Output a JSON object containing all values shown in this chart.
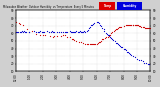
{
  "background_color": "#d0d0d0",
  "plot_bg_color": "#ffffff",
  "grid_color": "#bbbbbb",
  "temp_color": "#cc0000",
  "humidity_color": "#0000cc",
  "legend_temp_color": "#dd0000",
  "legend_humidity_color": "#0000dd",
  "legend_temp_label": "Temp",
  "legend_humidity_label": "Humidity",
  "ylim": [
    10,
    90
  ],
  "xlim": [
    0,
    600
  ],
  "marker_size": 0.8,
  "figsize": [
    1.6,
    0.87
  ],
  "dpi": 100,
  "temp_x": [
    0,
    15,
    20,
    30,
    50,
    70,
    90,
    110,
    120,
    130,
    150,
    165,
    170,
    185,
    200,
    210,
    220,
    230,
    240,
    250,
    255,
    260,
    270,
    280,
    290,
    300,
    310,
    315,
    320,
    330,
    335,
    340,
    345,
    350,
    355,
    360,
    365,
    370,
    375,
    380,
    385,
    390,
    395,
    400,
    410,
    415,
    420,
    425,
    430,
    435,
    440,
    445,
    450,
    455,
    460,
    465,
    470,
    480,
    490,
    495,
    500,
    505,
    510,
    515,
    520,
    525,
    530,
    535,
    540,
    545,
    550,
    555,
    560,
    565,
    570,
    575,
    580,
    585,
    590,
    595,
    600
  ],
  "temp_y": [
    75,
    73,
    72,
    70,
    66,
    63,
    59,
    57,
    57,
    57,
    56,
    56,
    56,
    56,
    57,
    57,
    57,
    56,
    55,
    53,
    52,
    51,
    50,
    49,
    48,
    47,
    46,
    46,
    46,
    46,
    46,
    46,
    46,
    46,
    46,
    46,
    47,
    48,
    49,
    50,
    52,
    53,
    54,
    55,
    56,
    57,
    58,
    60,
    62,
    63,
    64,
    65,
    66,
    67,
    68,
    68,
    69,
    70,
    71,
    71,
    71,
    71,
    71,
    71,
    71,
    71,
    71,
    71,
    71,
    71,
    70,
    69,
    68,
    68,
    68,
    67,
    67,
    67,
    67,
    67,
    66
  ],
  "hum_x": [
    0,
    5,
    10,
    15,
    20,
    25,
    30,
    35,
    40,
    45,
    55,
    60,
    80,
    90,
    100,
    105,
    110,
    115,
    120,
    125,
    140,
    150,
    155,
    160,
    165,
    170,
    180,
    190,
    200,
    210,
    220,
    225,
    230,
    240,
    245,
    250,
    255,
    260,
    265,
    270,
    275,
    280,
    285,
    290,
    295,
    300,
    305,
    310,
    315,
    320,
    325,
    330,
    335,
    340,
    345,
    350,
    360,
    365,
    370,
    375,
    380,
    385,
    390,
    395,
    400,
    405,
    410,
    415,
    420,
    425,
    430,
    435,
    440,
    445,
    450,
    455,
    460,
    465,
    470,
    475,
    480,
    485,
    490,
    495,
    500,
    505,
    510,
    515,
    520,
    530,
    540,
    550,
    560,
    565,
    570,
    580,
    590,
    595,
    600
  ],
  "hum_y": [
    62,
    62,
    62,
    62,
    62,
    62,
    62,
    62,
    62,
    62,
    62,
    62,
    62,
    62,
    62,
    62,
    62,
    62,
    62,
    62,
    62,
    62,
    62,
    62,
    62,
    62,
    62,
    62,
    62,
    62,
    62,
    62,
    62,
    62,
    62,
    62,
    62,
    62,
    62,
    62,
    62,
    62,
    62,
    62,
    62,
    62,
    62,
    62,
    63,
    65,
    66,
    68,
    70,
    71,
    73,
    74,
    75,
    75,
    73,
    71,
    69,
    67,
    65,
    63,
    61,
    60,
    58,
    57,
    55,
    53,
    52,
    51,
    49,
    48,
    47,
    46,
    45,
    43,
    42,
    41,
    40,
    39,
    38,
    36,
    35,
    34,
    33,
    31,
    30,
    28,
    27,
    25,
    24,
    23,
    22,
    21,
    20,
    19,
    18
  ],
  "xtick_positions": [
    0,
    60,
    120,
    180,
    240,
    300,
    360,
    420,
    480,
    540,
    600
  ],
  "xtick_labels": [
    "12:00",
    "1:00",
    "2:00",
    "3:00",
    "4:00",
    "5:00",
    "6:00",
    "7:00",
    "8:00",
    "9:00",
    "10:00"
  ],
  "ytick_positions": [
    10,
    20,
    30,
    40,
    50,
    60,
    70,
    80,
    90
  ],
  "ytick_labels": [
    "10",
    "20",
    "30",
    "40",
    "50",
    "60",
    "70",
    "80",
    "90"
  ]
}
